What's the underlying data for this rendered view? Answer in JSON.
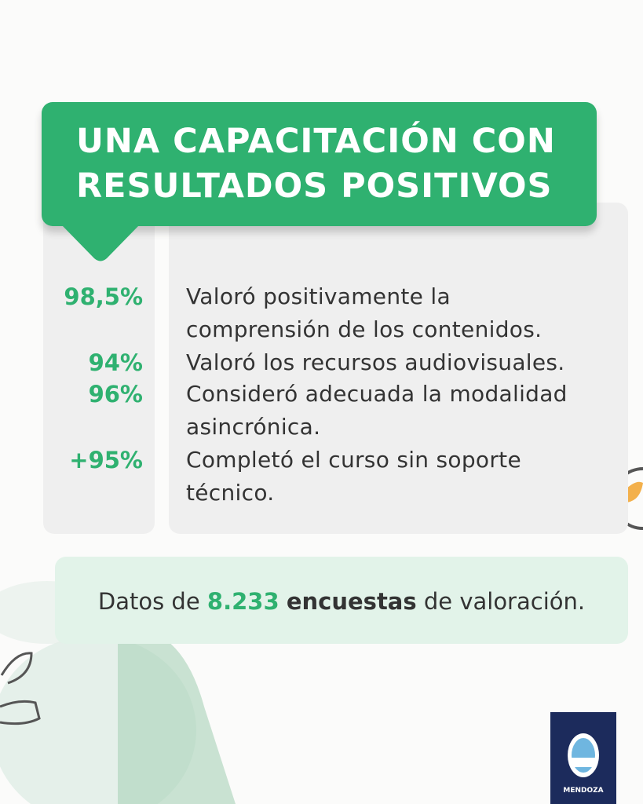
{
  "header": {
    "title_lines": [
      "UNA CAPACITACIÓN CON",
      "RESULTADOS POSITIVOS"
    ]
  },
  "stats": [
    {
      "value": "98,5%",
      "text_lines": [
        "Valoró positivamente la",
        "comprensión de los contenidos."
      ]
    },
    {
      "value": "94%",
      "text_lines": [
        "Valoró los recursos audiovisuales."
      ]
    },
    {
      "value": "96%",
      "text_lines": [
        "Consideró adecuada la modalidad",
        "asincrónica."
      ]
    },
    {
      "value": "+95%",
      "text_lines": [
        "Completó el curso sin soporte",
        "técnico."
      ]
    }
  ],
  "footer": {
    "parts": [
      "Datos de",
      "8.233",
      "encuestas",
      "de valoración."
    ]
  },
  "logo": {
    "label": "MENDOZA"
  }
}
